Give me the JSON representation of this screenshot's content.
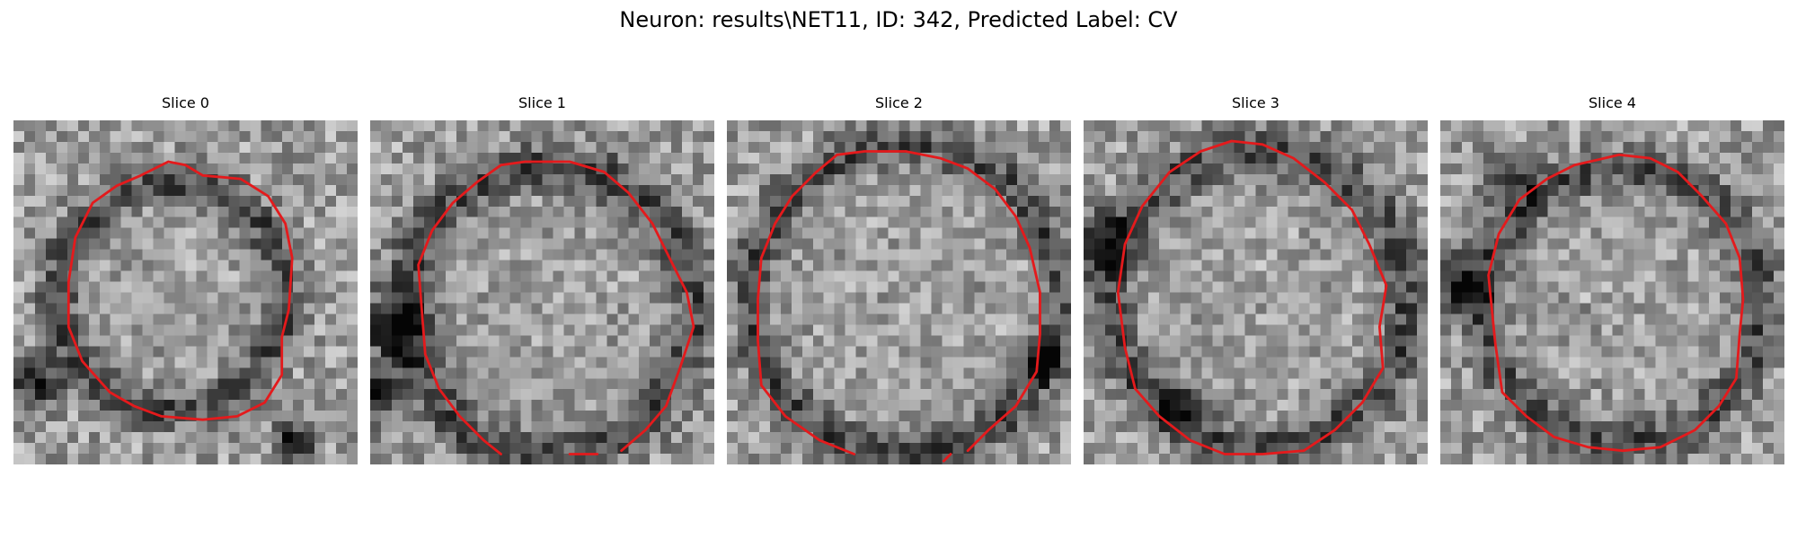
{
  "figure": {
    "title": "Neuron: results\\NET11, ID: 342, Predicted Label: CV"
  },
  "colors": {
    "background": "#ffffff",
    "contour": "#e41a1c"
  },
  "panels": [
    {
      "title": "Slice 0",
      "image_description_icon": "grayscale-em-slice",
      "contour_segments": 1
    },
    {
      "title": "Slice 1",
      "image_description_icon": "grayscale-em-slice",
      "contour_segments": 2
    },
    {
      "title": "Slice 2",
      "image_description_icon": "grayscale-em-slice",
      "contour_segments": 2
    },
    {
      "title": "Slice 3",
      "image_description_icon": "grayscale-em-slice",
      "contour_segments": 1
    },
    {
      "title": "Slice 4",
      "image_description_icon": "grayscale-em-slice",
      "contour_segments": 1
    }
  ]
}
